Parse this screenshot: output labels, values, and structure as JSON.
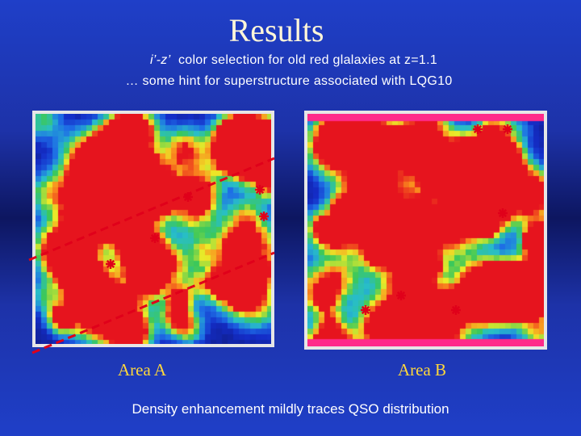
{
  "slide": {
    "title": "Results",
    "subtitle_color_term": "i’-z’",
    "subtitle_rest": "color selection for old red glalaxies at z=1.1",
    "subtitle_line2": "… some hint for superstructure associated with LQG10",
    "area_a_label": "Area A",
    "area_b_label": "Area B",
    "caption": "Density enhancement mildly traces QSO distribution"
  },
  "colors": {
    "background": "#1f3fc8",
    "title": "#fff6d8",
    "area_label": "#ffd83a",
    "qso_marker": "#e0001a",
    "dashed_line": "#e0001a",
    "panel_b_band": "#ff2a8a"
  }
}
